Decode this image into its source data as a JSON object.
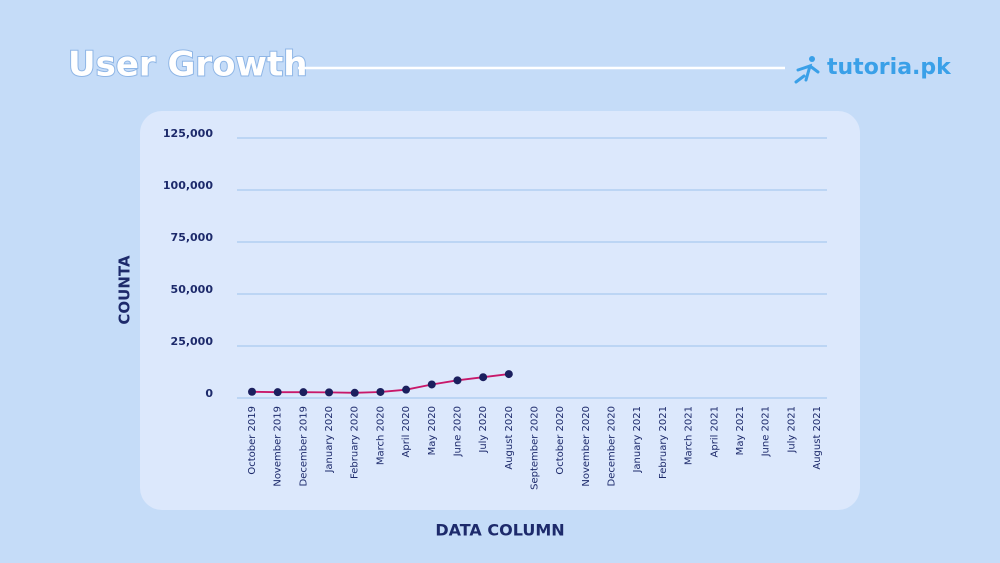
{
  "brand": "tutoria.pk",
  "chart_data": {
    "type": "line",
    "title": "User Growth",
    "x_label": "DATA COLUMN",
    "y_label": "COUNTA",
    "categories": [
      "October 2019",
      "November 2019",
      "December 2019",
      "January 2020",
      "February 2020",
      "March 2020",
      "April 2020",
      "May 2020",
      "June 2020",
      "July 2020",
      "August 2020",
      "September 2020",
      "October 2020",
      "November 2020",
      "December 2020",
      "January 2021",
      "February 2021",
      "March 2021",
      "April 2021",
      "May 2021",
      "June 2021",
      "July 2021",
      "August 2021"
    ],
    "series": [
      {
        "name": "COUNTA",
        "color": "#c8186a",
        "marker_color": "#1b1f5e",
        "values": [
          3000,
          2800,
          2800,
          2700,
          2500,
          2900,
          4000,
          6500,
          8500,
          10000,
          11500,
          null,
          null,
          null,
          null,
          null,
          null,
          null,
          null,
          null,
          null,
          null,
          null
        ]
      }
    ],
    "ylim": [
      0,
      125000
    ],
    "yticks": [
      0,
      {
        "value": 25000,
        "label": "25,000"
      },
      {
        "value": 50000,
        "label": "50,000"
      },
      {
        "value": 75000,
        "label": "75,000"
      },
      {
        "value": 100000,
        "label": "100,000"
      },
      {
        "value": 125000,
        "label": "125,000"
      }
    ],
    "grid": true
  }
}
